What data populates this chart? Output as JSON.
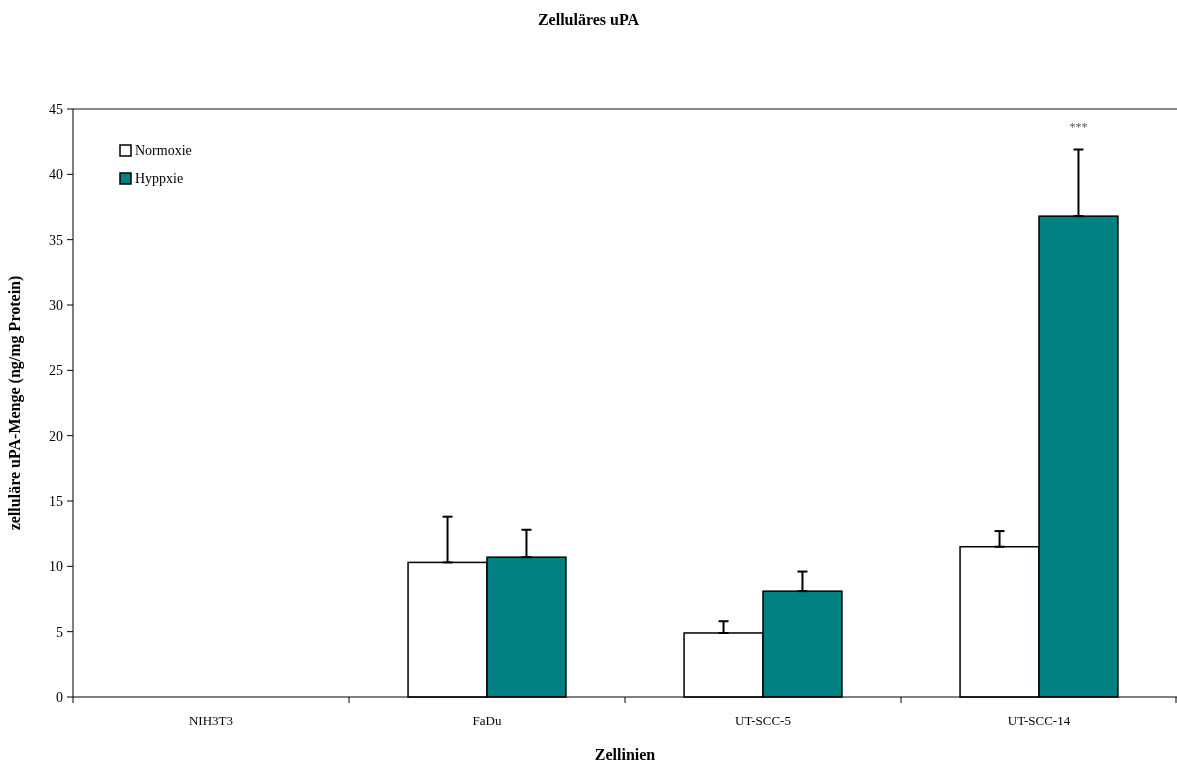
{
  "chart_data": {
    "type": "bar",
    "title": "Zelluläres uPA",
    "xlabel": "Zellinien",
    "ylabel": "zelluläre uPA-Menge (ng/mg Protein)",
    "categories": [
      "NIH3T3",
      "FaDu",
      "UT-SCC-5",
      "UT-SCC-14"
    ],
    "series": [
      {
        "name": "Normoxie",
        "color": "#ffffff",
        "values": [
          0,
          10.3,
          4.9,
          11.5
        ],
        "errors": [
          null,
          [
            10.3,
            13.8
          ],
          [
            4.9,
            5.8
          ],
          [
            11.5,
            12.7
          ]
        ]
      },
      {
        "name": "Hyppxie",
        "color": "#008080",
        "values": [
          0,
          10.7,
          8.1,
          36.8
        ],
        "errors": [
          null,
          [
            10.7,
            12.8
          ],
          [
            8.1,
            9.6
          ],
          [
            36.8,
            41.9
          ]
        ]
      }
    ],
    "ylim": [
      0,
      45
    ],
    "yticks": [
      0,
      5,
      10,
      15,
      20,
      25,
      30,
      35,
      40,
      45
    ],
    "grid": false,
    "legend": "top left",
    "annotations": [
      "***"
    ]
  }
}
